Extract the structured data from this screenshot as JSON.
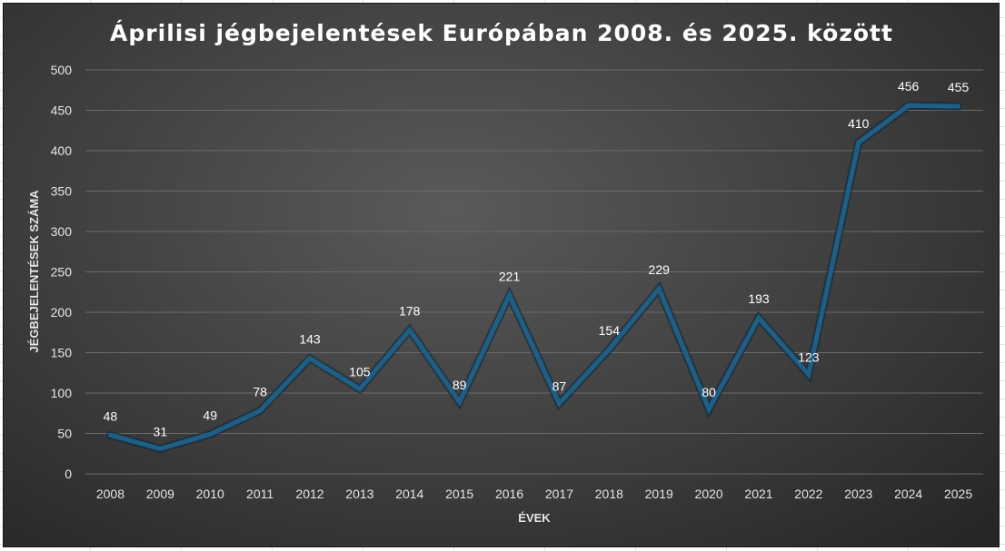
{
  "chart_data": {
    "type": "line",
    "title": "Áprilisi jégbejelentések Európában 2008. és 2025. között",
    "xlabel": "ÉVEK",
    "ylabel": "JÉGBEJELENTÉSEK SZÁMA",
    "ylim": [
      0,
      500
    ],
    "yticks": [
      0,
      50,
      100,
      150,
      200,
      250,
      300,
      350,
      400,
      450,
      500
    ],
    "categories": [
      "2008",
      "2009",
      "2010",
      "2011",
      "2012",
      "2013",
      "2014",
      "2015",
      "2016",
      "2017",
      "2018",
      "2019",
      "2020",
      "2021",
      "2022",
      "2023",
      "2024",
      "2025"
    ],
    "series": [
      {
        "values": [
          48,
          31,
          49,
          78,
          143,
          105,
          178,
          89,
          221,
          87,
          154,
          229,
          80,
          193,
          123,
          410,
          456,
          455
        ]
      }
    ],
    "grid": true,
    "legend": "none",
    "colors": {
      "line": "#1f5f86",
      "line_glow": "#0e2a3d",
      "gridline": "#6a6a6a",
      "text": "#e6e6e6"
    }
  }
}
